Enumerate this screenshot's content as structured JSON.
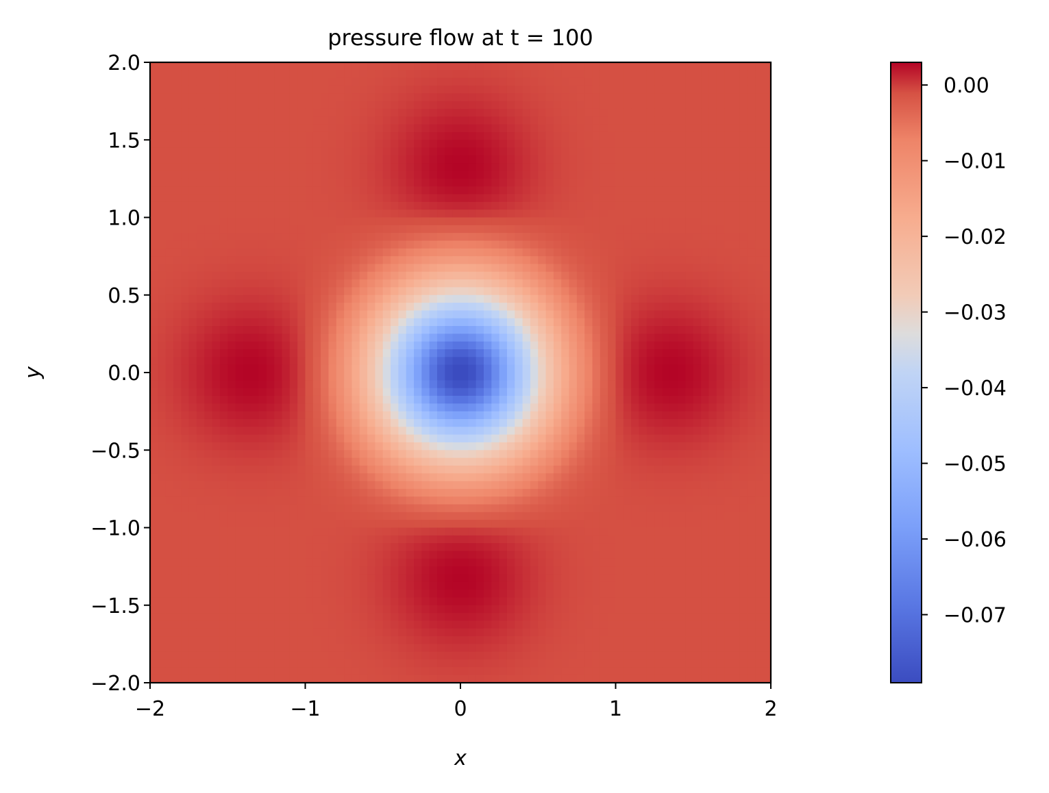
{
  "chart_data": {
    "type": "heatmap",
    "title": "pressure flow at t = 100",
    "xlabel": "x",
    "ylabel": "y",
    "xlim": [
      -2,
      2
    ],
    "ylim": [
      -2,
      2
    ],
    "x_ticks": [
      -2,
      -1,
      0,
      1,
      2
    ],
    "x_tick_labels": [
      "−2",
      "−1",
      "0",
      "1",
      "2"
    ],
    "y_ticks": [
      2.0,
      1.5,
      1.0,
      0.5,
      0.0,
      -0.5,
      -1.0,
      -1.5,
      -2.0
    ],
    "y_tick_labels": [
      "2.0",
      "1.5",
      "1.0",
      "0.5",
      "0.0",
      "−0.5",
      "−1.0",
      "−1.5",
      "−2.0"
    ],
    "colormap": "coolwarm",
    "colorbar": {
      "vmin": -0.079,
      "vmax": 0.003,
      "ticks": [
        0.0,
        -0.01,
        -0.02,
        -0.03,
        -0.04,
        -0.05,
        -0.06,
        -0.07
      ],
      "tick_labels": [
        "0.00",
        "−0.01",
        "−0.02",
        "−0.03",
        "−0.04",
        "−0.05",
        "−0.06",
        "−0.07"
      ]
    },
    "field": {
      "grid": [
        80,
        80
      ],
      "description_of_values": "pressure field: minimum about -0.079 at (0, 0); ring of lower pressure up to radius ~0.9; local maxima about 0.003 near (±1.35, 0) and (0, ±1.35); background about -0.001",
      "center_min": -0.079,
      "lobe_max": 0.003,
      "background": -0.001
    }
  }
}
